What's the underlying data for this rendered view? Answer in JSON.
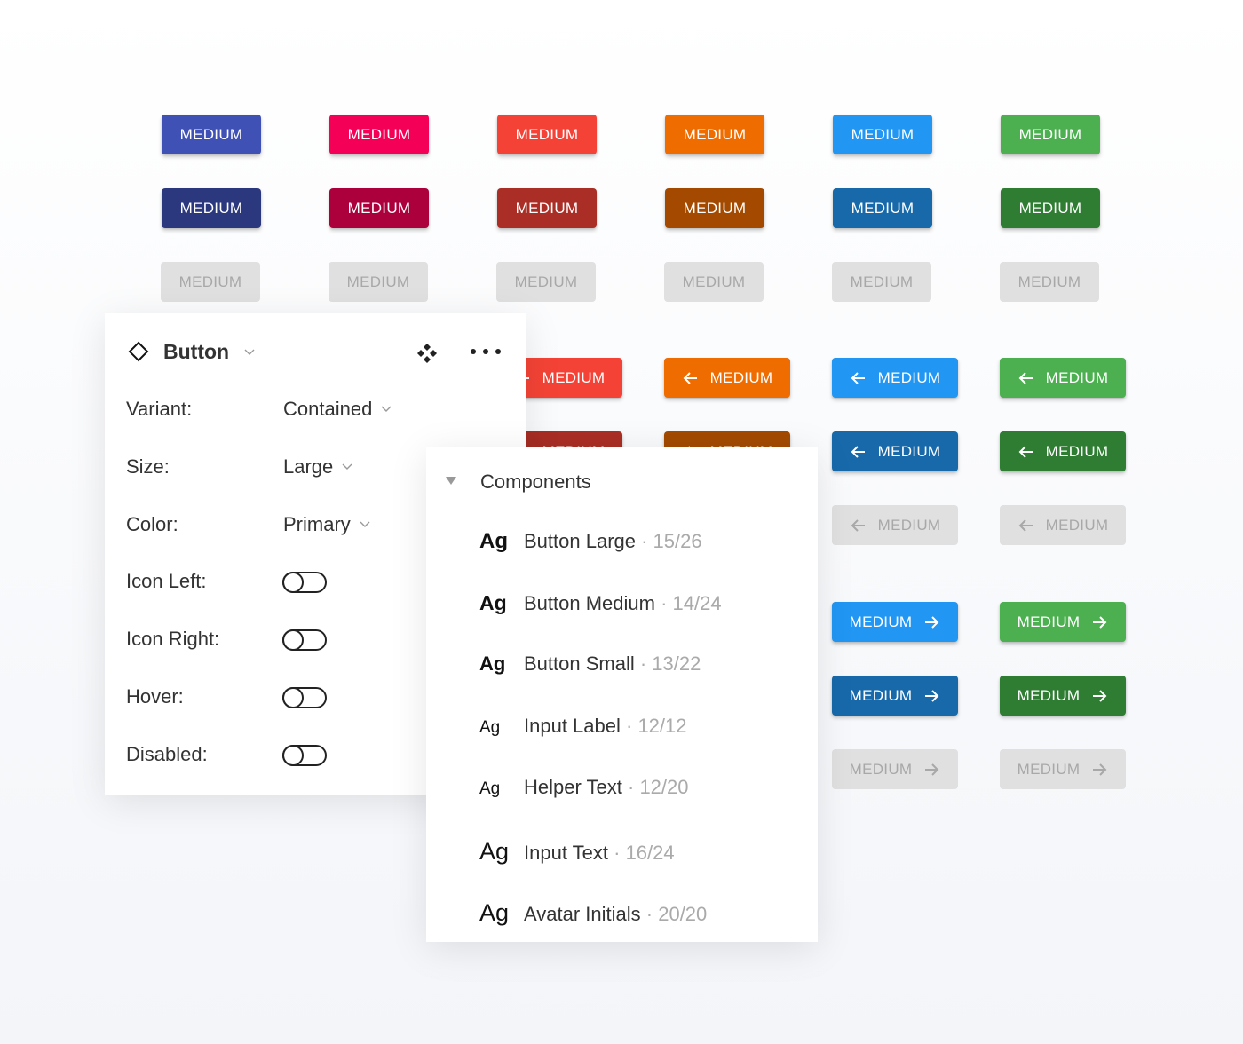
{
  "colors": {
    "main": [
      "#3f51b5",
      "#f50057",
      "#f44336",
      "#ef6c00",
      "#2196f3",
      "#4caf50"
    ],
    "dark": [
      "#2c387e",
      "#ab003c",
      "#aa2e25",
      "#a34a00",
      "#1769aa",
      "#2e7d32"
    ],
    "disabled_bg": "#e0e0e0",
    "disabled_text": "#a8a8a8"
  },
  "button_label": "MEDIUM",
  "properties": {
    "title": "Button",
    "fields": [
      {
        "label": "Variant:",
        "value": "Contained"
      },
      {
        "label": "Size:",
        "value": "Large"
      },
      {
        "label": "Color:",
        "value": "Primary"
      }
    ],
    "toggles": [
      {
        "label": "Icon Left:",
        "on": false
      },
      {
        "label": "Icon Right:",
        "on": false
      },
      {
        "label": "Hover:",
        "on": false
      },
      {
        "label": "Disabled:",
        "on": false
      }
    ]
  },
  "components": {
    "title": "Components",
    "items": [
      {
        "sample": "Ag",
        "name": "Button Large",
        "meta": "· 15/26",
        "size": 24,
        "weight": 700
      },
      {
        "sample": "Ag",
        "name": "Button Medium",
        "meta": "· 14/24",
        "size": 23,
        "weight": 700
      },
      {
        "sample": "Ag",
        "name": "Button Small",
        "meta": "· 13/22",
        "size": 22,
        "weight": 700
      },
      {
        "sample": "Ag",
        "name": "Input Label",
        "meta": "· 12/12",
        "size": 19,
        "weight": 400
      },
      {
        "sample": "Ag",
        "name": "Helper Text",
        "meta": "· 12/20",
        "size": 19,
        "weight": 400
      },
      {
        "sample": "Ag",
        "name": "Input Text",
        "meta": "· 16/24",
        "size": 27,
        "weight": 400
      },
      {
        "sample": "Ag",
        "name": "Avatar Initials",
        "meta": "· 20/20",
        "size": 27,
        "weight": 400
      }
    ]
  }
}
